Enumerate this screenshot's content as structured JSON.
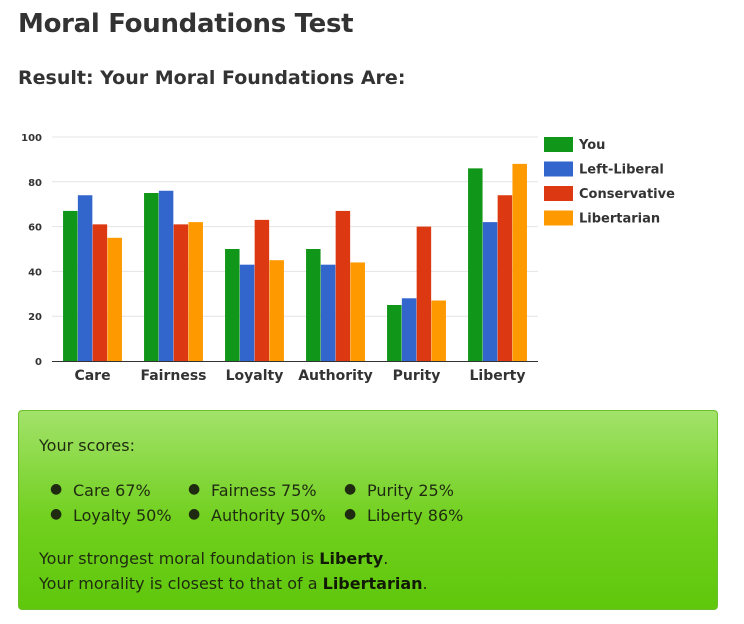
{
  "page": {
    "title": "Moral Foundations Test",
    "result_heading": "Result: Your Moral Foundations Are:"
  },
  "chart_data": {
    "type": "bar",
    "categories": [
      "Care",
      "Fairness",
      "Loyalty",
      "Authority",
      "Purity",
      "Liberty"
    ],
    "series": [
      {
        "name": "You",
        "color": "#109618",
        "values": [
          67,
          75,
          50,
          50,
          25,
          86
        ]
      },
      {
        "name": "Left-Liberal",
        "color": "#3366cc",
        "values": [
          74,
          76,
          43,
          43,
          28,
          62
        ]
      },
      {
        "name": "Conservative",
        "color": "#dc3912",
        "values": [
          61,
          61,
          63,
          67,
          60,
          74
        ]
      },
      {
        "name": "Libertarian",
        "color": "#ff9900",
        "values": [
          55,
          62,
          45,
          44,
          27,
          88
        ]
      }
    ],
    "ylim": [
      0,
      100
    ],
    "yticks": [
      "0",
      "20",
      "40",
      "60",
      "80",
      "100"
    ],
    "grid": true,
    "legend": "right"
  },
  "scores": {
    "label": "Your scores:",
    "items": [
      "Care 67%",
      "Fairness 75%",
      "Purity 25%",
      "Loyalty 50%",
      "Authority 50%",
      "Liberty 86%"
    ],
    "strongest_prefix": "Your strongest moral foundation is ",
    "strongest_value": "Liberty",
    "strongest_suffix": ".",
    "closest_prefix": "Your morality is closest to that of a ",
    "closest_value": "Libertarian",
    "closest_suffix": ".",
    "box_color": "#66cc11"
  }
}
